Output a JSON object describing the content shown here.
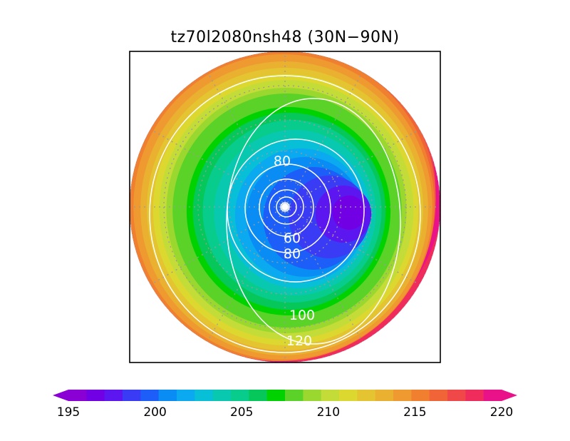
{
  "chart_data": {
    "type": "heatmap",
    "projection": "north-polar-stereographic",
    "title": "tz70l2080nsh48 (30N−90N)",
    "latitude_range": [
      30,
      90
    ],
    "grid": true,
    "fill_field": {
      "variable_range": [
        195,
        220
      ],
      "colorbar": {
        "orientation": "horizontal",
        "placement": "bottom",
        "tick_labels": [
          "195",
          "200",
          "205",
          "210",
          "215",
          "220"
        ],
        "tick_values": [
          195,
          200,
          205,
          210,
          215,
          220
        ],
        "level_step": 1,
        "colors": [
          "#8a00d4",
          "#7200e4",
          "#5c16f0",
          "#3a3cf5",
          "#1c5ef7",
          "#0a8cf5",
          "#0aa9f0",
          "#08bfd8",
          "#08c9b0",
          "#08cc8c",
          "#06c85a",
          "#00d200",
          "#5ad228",
          "#9ad830",
          "#c4dc38",
          "#dcd830",
          "#e4c430",
          "#eab030",
          "#ee9a30",
          "#f08030",
          "#f06438",
          "#f04848",
          "#f02c5c",
          "#ea1288"
        ]
      }
    },
    "contours": {
      "color": "#ffffff",
      "labels": [
        "80",
        "60",
        "80",
        "100",
        "120"
      ]
    }
  }
}
